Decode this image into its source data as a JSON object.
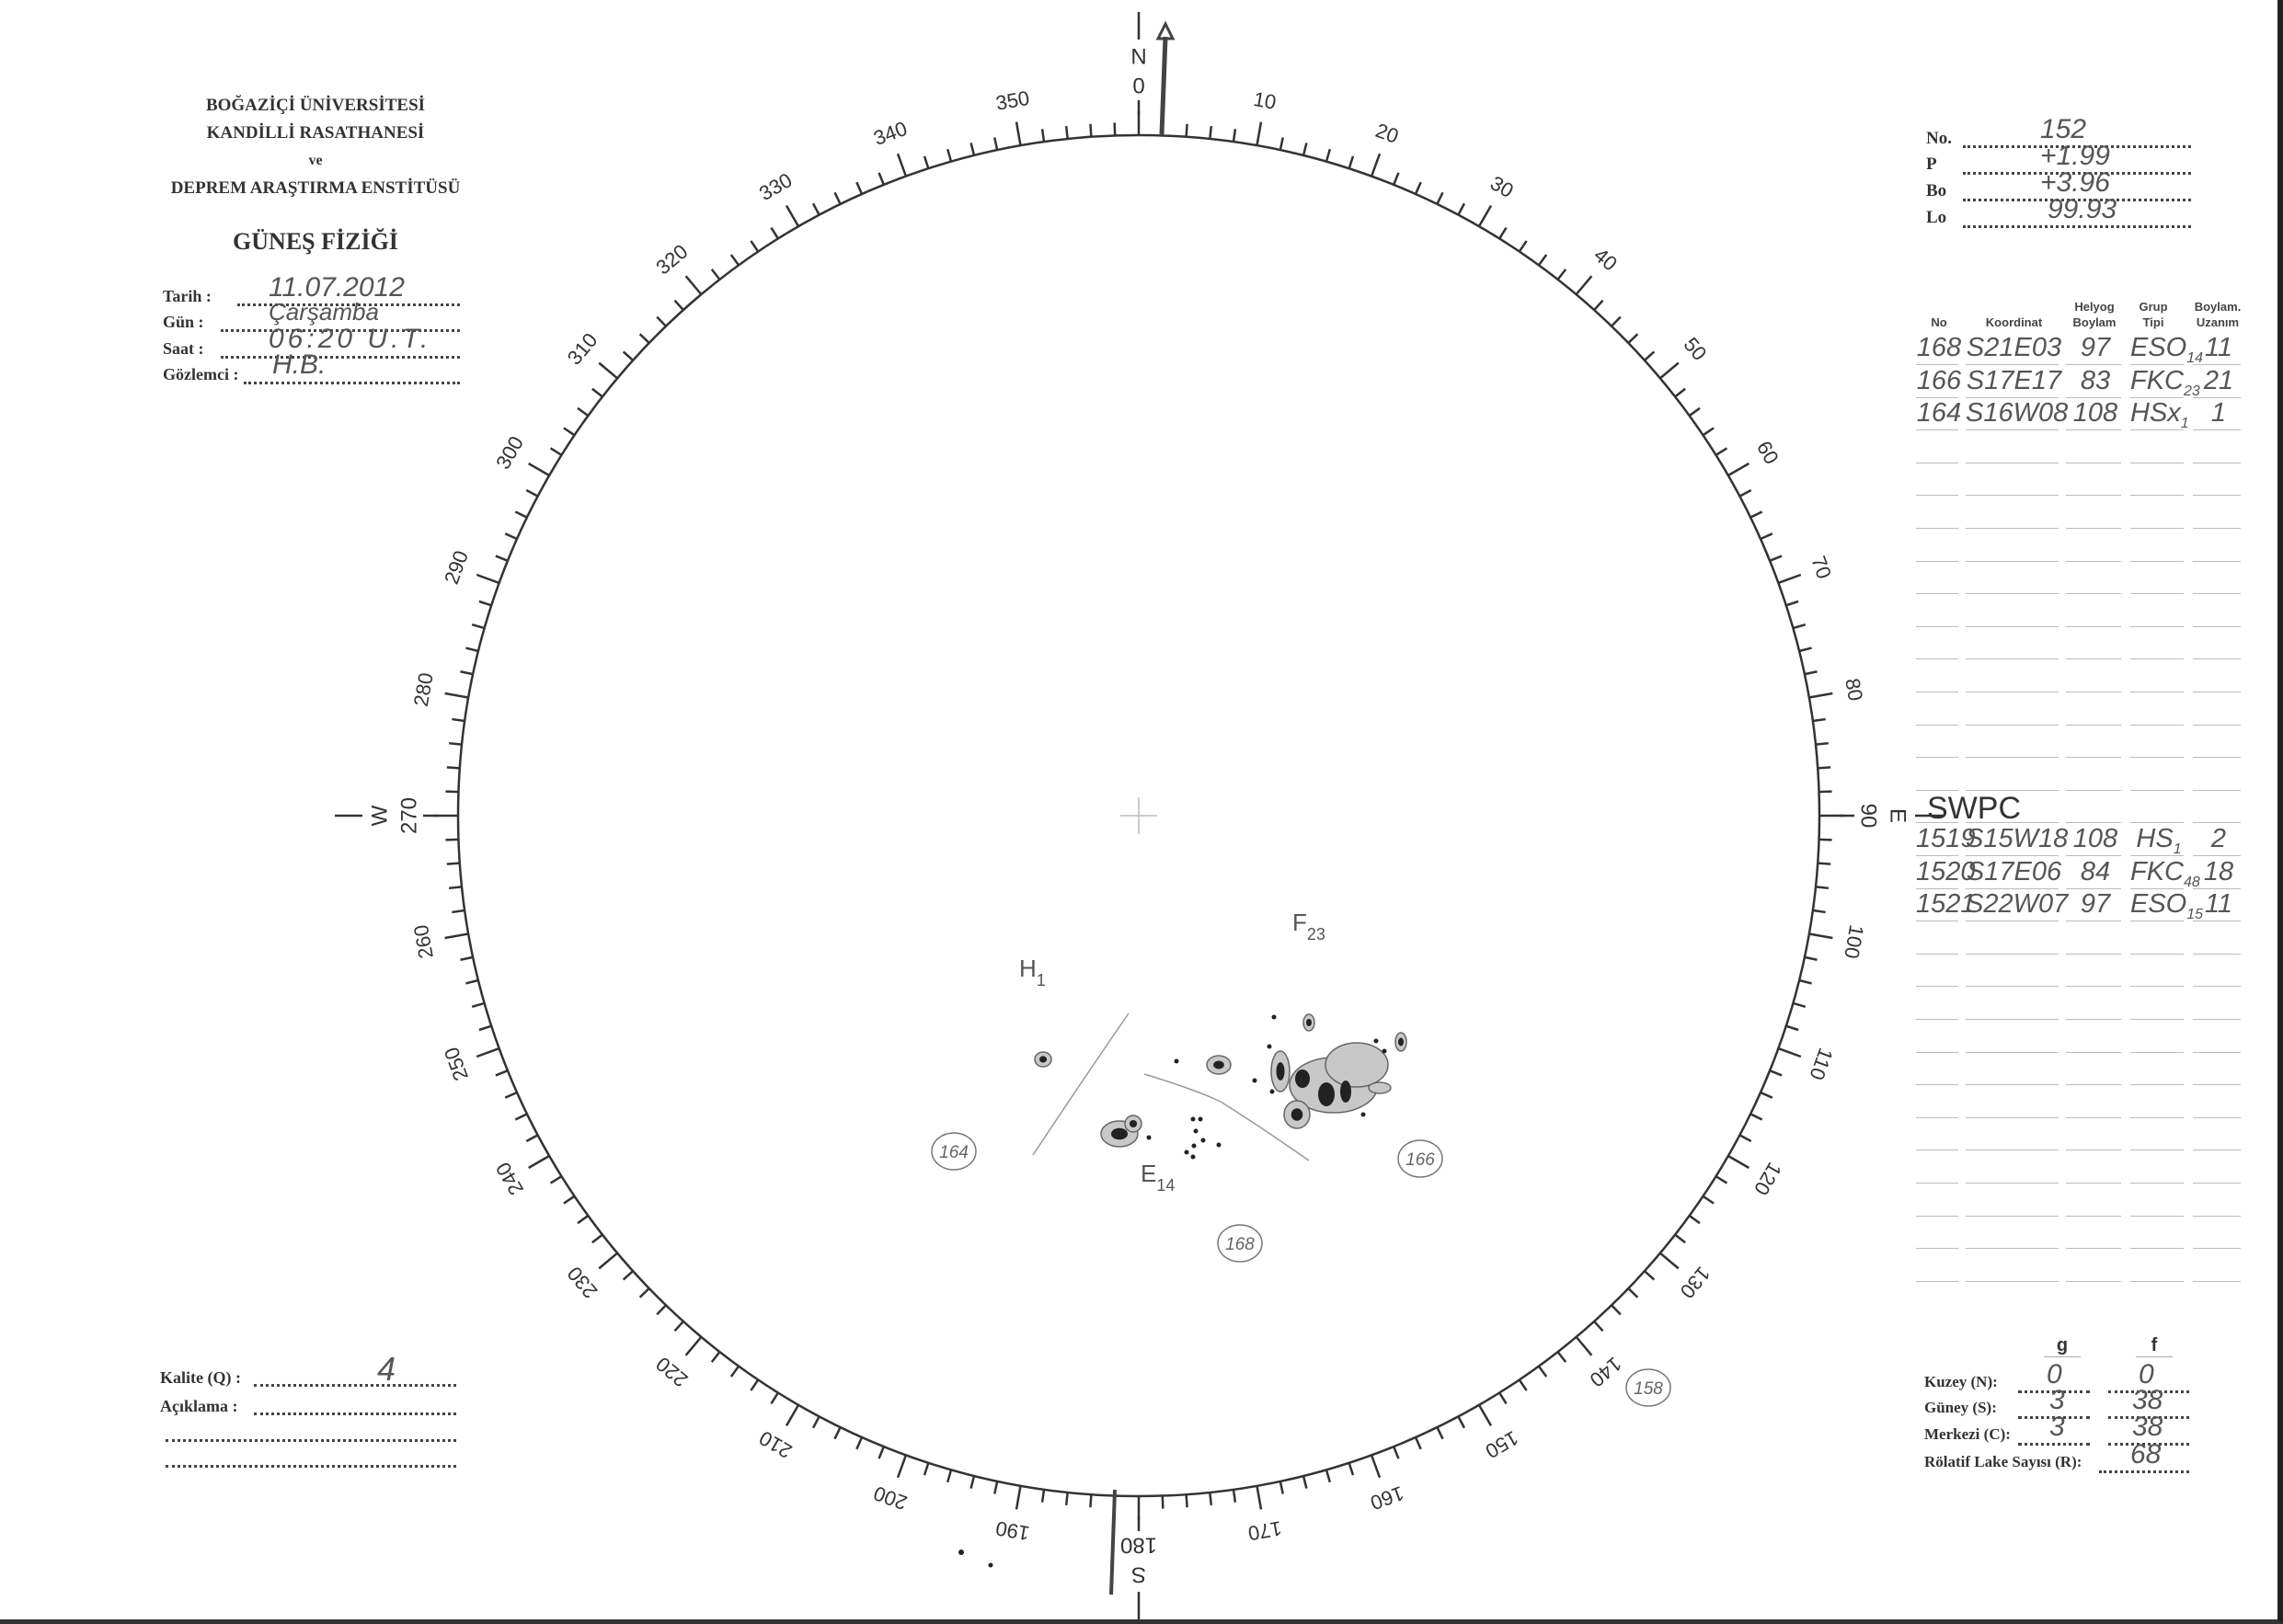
{
  "header": {
    "institution_line1": "BOĞAZİÇİ ÜNİVERSİTESİ",
    "institution_line2": "KANDİLLİ RASATHANESİ",
    "institution_line3": "ve",
    "institution_line4": "DEPREM ARAŞTIRMA ENSTİTÜSÜ",
    "title": "GÜNEŞ FİZİĞİ"
  },
  "observation": {
    "date_label": "Tarih :",
    "date_value": "11.07.2012",
    "day_label": "Gün :",
    "day_value": "Çarşamba",
    "time_label": "Saat :",
    "time_value": "06:20 U.T.",
    "observer_label": "Gözlemci :",
    "observer_value": "H.B."
  },
  "parameters": {
    "no_label": "No.",
    "no_value": "152",
    "p_label": "P",
    "p_value": "+1.99",
    "bo_label": "Bo",
    "bo_value": "+3.96",
    "lo_label": "Lo",
    "lo_value": "99.93"
  },
  "group_table": {
    "headers": {
      "no": "No",
      "coord": "Koordinat",
      "helio": "Helyog Boylam",
      "type": "Grup Tipi",
      "extent": "Boylam. Uzanım"
    },
    "rows": [
      {
        "no": "168",
        "coord": "S21E03",
        "helio": "97",
        "type": "ESO",
        "count": "14",
        "extent": "11"
      },
      {
        "no": "166",
        "coord": "S17E17",
        "helio": "83",
        "type": "FKC",
        "count": "23",
        "extent": "21"
      },
      {
        "no": "164",
        "coord": "S16W08",
        "helio": "108",
        "type": "HSx",
        "count": "1",
        "extent": "1"
      }
    ],
    "swpc_label": "SWPC",
    "swpc_rows": [
      {
        "no": "1519",
        "coord": "S15W18",
        "helio": "108",
        "type": "HS",
        "count": "1",
        "extent": "2"
      },
      {
        "no": "1520",
        "coord": "S17E06",
        "helio": "84",
        "type": "FKC",
        "count": "48",
        "extent": "18"
      },
      {
        "no": "1521",
        "coord": "S22W07",
        "helio": "97",
        "type": "ESO",
        "count": "15",
        "extent": "11"
      }
    ]
  },
  "compass": {
    "labels": [
      "0",
      "10",
      "20",
      "30",
      "40",
      "50",
      "60",
      "70",
      "80",
      "90",
      "100",
      "110",
      "120",
      "130",
      "140",
      "150",
      "160",
      "170",
      "180",
      "190",
      "200",
      "210",
      "220",
      "230",
      "240",
      "250",
      "260",
      "270",
      "280",
      "290",
      "300",
      "310",
      "320",
      "330",
      "340",
      "350"
    ],
    "north": "N",
    "south": "S",
    "east": "E",
    "west": "W"
  },
  "drawing": {
    "group_h_label": "H",
    "group_h_count": "1",
    "group_f_label": "F",
    "group_f_count": "23",
    "group_e_label": "E",
    "group_e_count": "14",
    "circled_164": "164",
    "circled_166": "166",
    "circled_168": "168",
    "circled_158": "158"
  },
  "quality": {
    "label": "Kalite (Q) :",
    "value": "4",
    "remark_label": "Açıklama :"
  },
  "counts": {
    "g_header": "g",
    "f_header": "f",
    "north_label": "Kuzey (N):",
    "north_g": "0",
    "north_f": "0",
    "south_label": "Güney (S):",
    "south_g": "3",
    "south_f": "38",
    "center_label": "Merkezi (C):",
    "center_g": "3",
    "center_f": "38",
    "r_label": "Rölatif Lake Sayısı (R):",
    "r_value": "68"
  }
}
